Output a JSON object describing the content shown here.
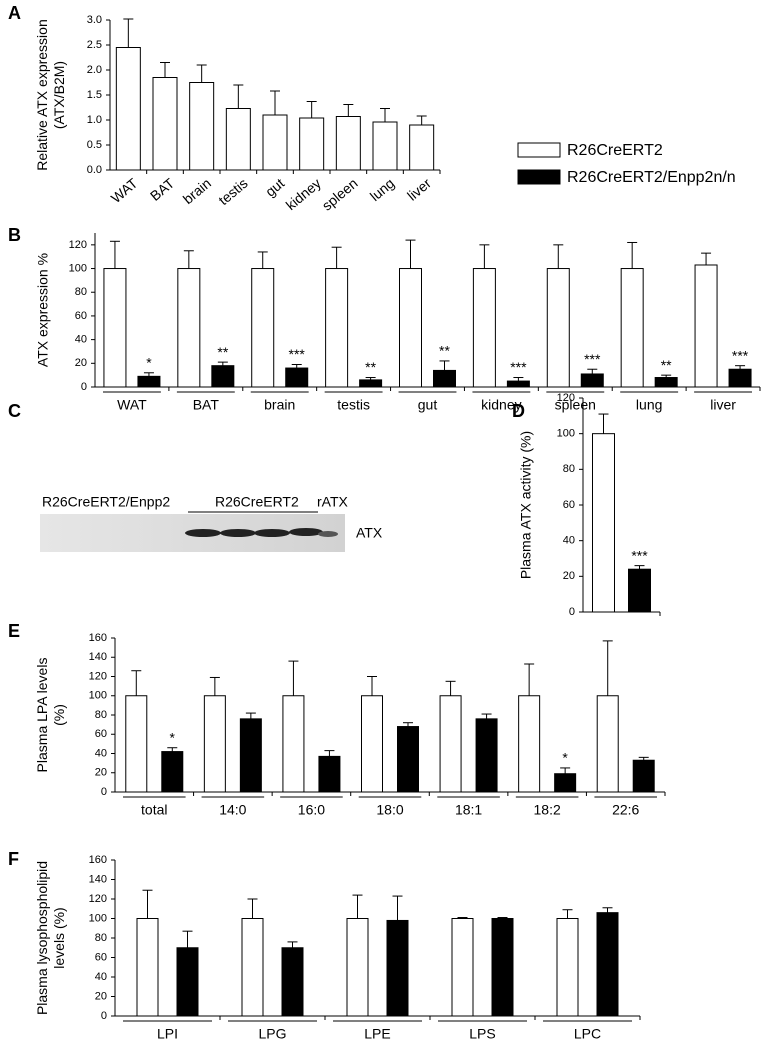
{
  "chart_data": [
    {
      "type": "bar",
      "panel": "A",
      "ylabel": [
        "Relative ATX expression",
        "(ATX/B2M)"
      ],
      "categories": [
        "WAT",
        "BAT",
        "brain",
        "testis",
        "gut",
        "kidney",
        "spleen",
        "lung",
        "liver"
      ],
      "series": [
        {
          "color": "#ffffff",
          "values": [
            2.45,
            1.85,
            1.75,
            1.23,
            1.1,
            1.04,
            1.07,
            0.96,
            0.9
          ],
          "errors": [
            0.57,
            0.3,
            0.35,
            0.47,
            0.48,
            0.33,
            0.24,
            0.27,
            0.18
          ]
        }
      ],
      "ylim": [
        0,
        3
      ],
      "yticks": [
        {
          "value": 0,
          "label": "0.0"
        },
        0.5,
        {
          "value": 1,
          "label": "1.0"
        },
        1.5,
        {
          "value": 2,
          "label": "2.0"
        },
        2.5,
        {
          "value": 3,
          "label": "3.0"
        }
      ]
    },
    {
      "type": "bar",
      "panel": "B",
      "ylabel": [
        "ATX expression %"
      ],
      "legend": true,
      "categories": [
        "WAT",
        "BAT",
        "brain",
        "testis",
        "gut",
        "kidney",
        "spleen",
        "lung",
        "liver"
      ],
      "series": [
        {
          "name": "R26CreERT2",
          "color": "#ffffff",
          "values": [
            100,
            100,
            100,
            100,
            100,
            100,
            100,
            100,
            103
          ],
          "errors": [
            23,
            15,
            14,
            18,
            24,
            20,
            20,
            22,
            10
          ]
        },
        {
          "name": "R26CreERT2/Enpp2n/n",
          "color": "#000000",
          "values": [
            9,
            18,
            16,
            6,
            14,
            5,
            11,
            8,
            15
          ],
          "errors": [
            3,
            3,
            3,
            2,
            8,
            3,
            4,
            2,
            3
          ],
          "annotations": [
            "*",
            "**",
            "***",
            "**",
            "**",
            "***",
            "***",
            "**",
            "***"
          ]
        }
      ],
      "ylim": [
        0,
        130
      ],
      "yticks": [
        0,
        20,
        40,
        60,
        80,
        100,
        120
      ]
    },
    {
      "type": "bar",
      "panel": "D",
      "ylabel": [
        "Plasma ATX activity (%)"
      ],
      "categories": [
        null
      ],
      "series": [
        {
          "color": "#ffffff",
          "values": [
            100
          ],
          "errors": [
            11
          ]
        },
        {
          "color": "#000000",
          "values": [
            24
          ],
          "errors": [
            2
          ],
          "annotations": [
            "***"
          ]
        }
      ],
      "ylim": [
        0,
        120
      ],
      "yticks": [
        0,
        20,
        40,
        60,
        80,
        100,
        120
      ]
    },
    {
      "type": "bar",
      "panel": "E",
      "ylabel": [
        "Plasma LPA levels",
        "(%)"
      ],
      "categories": [
        "total",
        "14:0",
        "16:0",
        "18:0",
        "18:1",
        "18:2",
        "22:6"
      ],
      "series": [
        {
          "color": "#ffffff",
          "values": [
            100,
            100,
            100,
            100,
            100,
            100,
            100
          ],
          "errors": [
            26,
            19,
            36,
            20,
            15,
            33,
            57
          ]
        },
        {
          "color": "#000000",
          "values": [
            42,
            76,
            37,
            68,
            76,
            19,
            33
          ],
          "errors": [
            4,
            6,
            6,
            4,
            5,
            6,
            3
          ],
          "annotations": [
            "*",
            null,
            null,
            null,
            null,
            "*",
            null
          ]
        }
      ],
      "ylim": [
        0,
        160
      ],
      "yticks": [
        0,
        20,
        40,
        60,
        80,
        100,
        120,
        140,
        160
      ]
    },
    {
      "type": "bar",
      "panel": "F",
      "ylabel": [
        "Plasma lysophospholipid",
        "levels (%)"
      ],
      "categories": [
        "LPI",
        "LPG",
        "LPE",
        "LPS",
        "LPC"
      ],
      "series": [
        {
          "color": "#ffffff",
          "values": [
            100,
            100,
            100,
            100,
            100
          ],
          "errors": [
            29,
            20,
            24,
            1,
            9
          ]
        },
        {
          "color": "#000000",
          "values": [
            70,
            70,
            98,
            100,
            106
          ],
          "errors": [
            17,
            6,
            25,
            1,
            5
          ]
        }
      ],
      "ylim": [
        0,
        160
      ],
      "yticks": [
        0,
        20,
        40,
        60,
        80,
        100,
        120,
        140,
        160
      ]
    }
  ],
  "blot": {
    "panel": "C",
    "labels": [
      "R26CreERT2/Enpp2",
      "R26CreERT2",
      "rATX"
    ],
    "band": "ATX"
  }
}
